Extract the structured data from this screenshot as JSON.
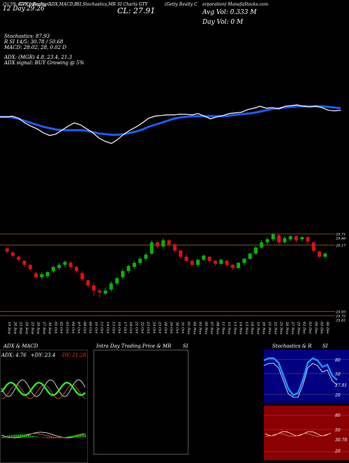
{
  "header": {
    "line1_left": "(5) 5% (Getty Realty C",
    "line1_a": "GTY Intraday ADX,MACD,B",
    "line1_b": "SI,Stochastics,MR",
    "line1_c": "SI Charts GTY",
    "line1_d": "(Getty Realty C",
    "line1_e": "orporation) ManafaStocks.com",
    "date_lbl": "12 Day",
    "date_val": "29.26",
    "close_lbl": "CL: 27.91",
    "avg_vol": "Avg Vol: 0.333 M",
    "day_vol": "Day Vol: 0   M",
    "stoch": "Stochastics: 87.93",
    "rsi": "R                SI 14/5: 30.78 / 50.68",
    "macd": "MACD: 28.02, 28, 0.02  D",
    "adx": "ADX:                    (MGR) 4.8, 23.4, 21.3",
    "adx_signal": "ADX  signal:                     BUY Growing @ 5%"
  },
  "colors": {
    "up": "#0bb20b",
    "down": "#e01010",
    "ma": "#1e5bff",
    "price": "#ffffff",
    "level": "#8a5a2b"
  },
  "price_chart": {
    "ylim": [
      25.6,
      30.0
    ],
    "levels": [
      {
        "value": 29.71,
        "label": "29.71",
        "label2": "29.66"
      },
      {
        "value": 29.17,
        "label": "29.17",
        "label2": ""
      },
      {
        "value": 25.93,
        "label": "25.93",
        "label2": ""
      },
      {
        "value": 25.72,
        "label": "25.72",
        "label2": "25.61"
      }
    ],
    "dates": [
      "19 Sep",
      "20 Sep",
      "23 Sep",
      "24 Sep",
      "25 Sep",
      "26 Sep",
      "27 Sep",
      "30 Sep",
      "01 Oct",
      "02 Oct",
      "03 Oct",
      "04 Oct",
      "07 Oct",
      "08 Oct",
      "09 Oct",
      "10 Oct",
      "11 Oct",
      "14 Oct",
      "15 Oct",
      "16 Oct",
      "17 Oct",
      "18 Oct",
      "21 Oct",
      "22 Oct",
      "23 Oct",
      "24 Oct",
      "25 Oct",
      "28 Oct",
      "29 Oct",
      "30 Oct",
      "31 Oct",
      "01 Nov",
      "04 Nov",
      "05 Nov",
      "06 Nov",
      "07 Nov",
      "08 Nov",
      "11 Nov",
      "12 Nov",
      "13 Nov",
      "14 Nov",
      "15 Nov",
      "18 Nov",
      "19 Nov",
      "20 Nov",
      "21 Nov",
      "22 Nov",
      "25 Nov",
      "26 Nov",
      "27 Nov",
      "29 Nov",
      "02 Dec",
      "03 Dec",
      "04 Dec",
      "05 Dec",
      "06 Dec"
    ],
    "candles": [
      [
        29.0,
        28.85,
        29.05,
        28.75
      ],
      [
        28.8,
        28.65,
        28.85,
        28.55
      ],
      [
        28.6,
        28.45,
        28.65,
        28.35
      ],
      [
        28.4,
        28.2,
        28.45,
        28.1
      ],
      [
        28.2,
        28.0,
        28.25,
        27.9
      ],
      [
        27.8,
        27.6,
        27.85,
        27.5
      ],
      [
        27.6,
        27.75,
        27.85,
        27.5
      ],
      [
        27.65,
        27.85,
        27.9,
        27.55
      ],
      [
        27.9,
        28.1,
        28.15,
        27.8
      ],
      [
        28.05,
        28.2,
        28.3,
        27.95
      ],
      [
        28.2,
        28.35,
        28.4,
        28.1
      ],
      [
        28.3,
        28.1,
        28.4,
        28.0
      ],
      [
        28.1,
        27.9,
        28.15,
        27.8
      ],
      [
        27.8,
        27.5,
        27.9,
        27.4
      ],
      [
        27.45,
        27.2,
        27.5,
        27.1
      ],
      [
        27.2,
        26.95,
        27.3,
        26.7
      ],
      [
        26.95,
        26.85,
        27.0,
        26.6
      ],
      [
        26.8,
        26.95,
        27.1,
        26.75
      ],
      [
        27.0,
        27.3,
        27.4,
        26.9
      ],
      [
        27.3,
        27.55,
        27.6,
        27.2
      ],
      [
        27.6,
        27.9,
        28.0,
        27.5
      ],
      [
        27.9,
        28.15,
        28.2,
        27.8
      ],
      [
        28.1,
        28.3,
        28.4,
        28.0
      ],
      [
        28.3,
        28.5,
        28.6,
        28.2
      ],
      [
        28.5,
        28.7,
        28.8,
        28.4
      ],
      [
        28.75,
        29.3,
        29.4,
        28.7
      ],
      [
        29.3,
        29.1,
        29.35,
        29.0
      ],
      [
        29.1,
        29.4,
        29.5,
        29.0
      ],
      [
        29.4,
        29.2,
        29.45,
        29.1
      ],
      [
        29.2,
        28.9,
        29.25,
        28.8
      ],
      [
        28.9,
        28.6,
        28.95,
        28.5
      ],
      [
        28.6,
        28.4,
        28.7,
        28.35
      ],
      [
        28.4,
        28.2,
        28.45,
        28.15
      ],
      [
        28.2,
        28.45,
        28.5,
        28.1
      ],
      [
        28.45,
        28.65,
        28.7,
        28.4
      ],
      [
        28.6,
        28.4,
        28.65,
        28.3
      ],
      [
        28.4,
        28.25,
        28.45,
        28.15
      ],
      [
        28.25,
        28.45,
        28.5,
        28.2
      ],
      [
        28.4,
        28.2,
        28.45,
        28.1
      ],
      [
        28.2,
        28.05,
        28.25,
        27.95
      ],
      [
        28.05,
        28.3,
        28.35,
        28.0
      ],
      [
        28.3,
        28.5,
        28.55,
        28.2
      ],
      [
        28.5,
        28.75,
        28.8,
        28.45
      ],
      [
        28.75,
        29.05,
        29.1,
        28.7
      ],
      [
        29.05,
        29.3,
        29.4,
        29.0
      ],
      [
        29.3,
        29.45,
        29.55,
        29.2
      ],
      [
        29.45,
        29.7,
        29.75,
        29.35
      ],
      [
        29.65,
        29.3,
        29.7,
        29.2
      ],
      [
        29.3,
        29.5,
        29.6,
        29.25
      ],
      [
        29.45,
        29.6,
        29.65,
        29.35
      ],
      [
        29.6,
        29.4,
        29.65,
        29.3
      ],
      [
        29.45,
        29.55,
        29.6,
        29.35
      ],
      [
        29.55,
        29.35,
        29.6,
        29.2
      ],
      [
        29.3,
        28.9,
        29.35,
        28.8
      ],
      [
        28.85,
        28.6,
        28.9,
        28.55
      ],
      [
        28.6,
        28.75,
        28.8,
        28.5
      ]
    ]
  },
  "main_lines": {
    "price": [
      0.18,
      0.18,
      0.17,
      0.2,
      0.27,
      0.32,
      0.36,
      0.42,
      0.46,
      0.44,
      0.38,
      0.32,
      0.27,
      0.3,
      0.36,
      0.42,
      0.5,
      0.55,
      0.58,
      0.52,
      0.44,
      0.38,
      0.33,
      0.27,
      0.2,
      0.17,
      0.16,
      0.15,
      0.15,
      0.14,
      0.14,
      0.15,
      0.13,
      0.17,
      0.21,
      0.18,
      0.16,
      0.13,
      0.12,
      0.11,
      0.07,
      0.05,
      0.02,
      0.05,
      0.04,
      0.06,
      0.02,
      0.01,
      0.0,
      0.02,
      0.03,
      0.02,
      0.04,
      0.08,
      0.09,
      0.08
    ],
    "ma": [
      0.18,
      0.18,
      0.19,
      0.21,
      0.24,
      0.27,
      0.3,
      0.33,
      0.35,
      0.37,
      0.38,
      0.38,
      0.38,
      0.38,
      0.39,
      0.41,
      0.43,
      0.44,
      0.45,
      0.45,
      0.44,
      0.42,
      0.4,
      0.37,
      0.33,
      0.3,
      0.27,
      0.24,
      0.21,
      0.19,
      0.18,
      0.17,
      0.17,
      0.17,
      0.17,
      0.17,
      0.17,
      0.16,
      0.15,
      0.14,
      0.13,
      0.12,
      0.1,
      0.08,
      0.06,
      0.05,
      0.04,
      0.03,
      0.02,
      0.02,
      0.02,
      0.02,
      0.02,
      0.03,
      0.04,
      0.05
    ]
  },
  "panels": {
    "adx": {
      "title": "ADX  & MACD",
      "adx_lbl": "ADX: 4.76",
      "di_plus": "+DY: 23.4",
      "di_minus": "-DY: 21.28"
    },
    "intraday": {
      "title": "Intra  Day Trading Price  & MR",
      "title2": "SI"
    },
    "stoch": {
      "title": "Stochastics & R",
      "title2": "SI",
      "ticks": [
        "80",
        "50",
        "27.91",
        "20"
      ],
      "rsi_ticks": [
        "80",
        "50",
        "30.78",
        "20"
      ]
    }
  }
}
